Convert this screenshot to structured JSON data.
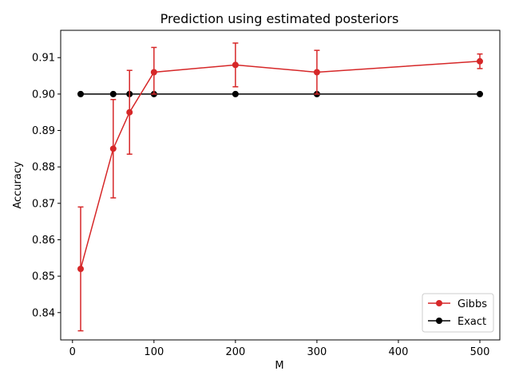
{
  "chart_data": {
    "type": "line",
    "title": "Prediction using estimated posteriors",
    "xlabel": "M",
    "ylabel": "Accuracy",
    "xlim": [
      -14.5,
      524.5
    ],
    "ylim": [
      0.8325,
      0.9175
    ],
    "xticks": [
      0,
      100,
      200,
      300,
      400,
      500
    ],
    "xtick_labels": [
      "0",
      "100",
      "200",
      "300",
      "400",
      "500"
    ],
    "yticks": [
      0.84,
      0.85,
      0.86,
      0.87,
      0.88,
      0.89,
      0.9,
      0.91
    ],
    "ytick_labels": [
      "0.84",
      "0.85",
      "0.86",
      "0.87",
      "0.88",
      "0.89",
      "0.90",
      "0.91"
    ],
    "grid": false,
    "legend_position": "bottom-right",
    "x": [
      10,
      50,
      70,
      100,
      200,
      300,
      500
    ],
    "series": [
      {
        "name": "Gibbs",
        "color": "#d62728",
        "values": [
          0.852,
          0.885,
          0.895,
          0.906,
          0.908,
          0.906,
          0.909
        ],
        "err_low": [
          0.835,
          0.8715,
          0.8835,
          0.9,
          0.902,
          0.9,
          0.907
        ],
        "err_high": [
          0.869,
          0.8985,
          0.9065,
          0.9128,
          0.914,
          0.912,
          0.911
        ]
      },
      {
        "name": "Exact",
        "color": "#000000",
        "values": [
          0.9,
          0.9,
          0.9,
          0.9,
          0.9,
          0.9,
          0.9
        ]
      }
    ]
  }
}
